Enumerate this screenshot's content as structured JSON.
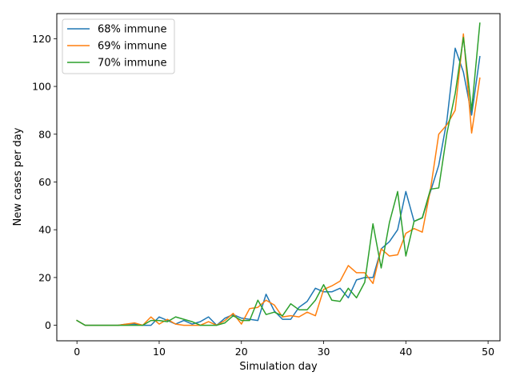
{
  "chart_data": {
    "type": "line",
    "title": "",
    "xlabel": "Simulation day",
    "ylabel": "New cases per day",
    "xlim": [
      -2.45,
      51.45
    ],
    "ylim": [
      -6.5,
      130.5
    ],
    "xticks": [
      0,
      10,
      20,
      30,
      40,
      50
    ],
    "yticks": [
      0,
      20,
      40,
      60,
      80,
      100,
      120
    ],
    "grid": false,
    "legend_position": "top-left",
    "x": [
      0,
      1,
      2,
      3,
      4,
      5,
      6,
      7,
      8,
      9,
      10,
      11,
      12,
      13,
      14,
      15,
      16,
      17,
      18,
      19,
      20,
      21,
      22,
      23,
      24,
      25,
      26,
      27,
      28,
      29,
      30,
      31,
      32,
      33,
      34,
      35,
      36,
      37,
      38,
      39,
      40,
      41,
      42,
      43,
      44,
      45,
      46,
      47,
      48,
      49
    ],
    "series": [
      {
        "name": "68% immune",
        "color": "#1f77b4",
        "values": [
          2,
          0,
          0,
          0,
          0,
          0,
          0.5,
          0.5,
          0,
          0,
          3.5,
          2,
          0.5,
          2,
          0.5,
          1.5,
          3.5,
          0,
          3,
          4.5,
          3,
          2.5,
          2,
          13,
          6,
          2.5,
          2.5,
          7.5,
          10,
          15.5,
          14,
          14,
          15.5,
          11.5,
          19,
          20,
          20,
          32,
          35,
          40,
          56,
          43.5,
          45,
          56,
          67,
          86,
          116,
          106,
          88,
          112.5
        ]
      },
      {
        "name": "69% immune",
        "color": "#ff7f0e",
        "values": [
          2,
          0,
          0,
          0,
          0,
          0,
          0.5,
          1,
          0,
          3.5,
          0.5,
          2.5,
          0.5,
          0,
          0,
          0,
          1.5,
          0,
          2,
          5,
          0.5,
          7,
          7.5,
          10.5,
          8.5,
          3.5,
          4,
          3.5,
          5.5,
          4,
          15,
          16.5,
          18.5,
          25,
          22,
          22,
          17.5,
          32,
          29,
          29.5,
          38.5,
          40.5,
          39,
          57,
          80,
          84,
          90,
          122,
          80.5,
          103.5
        ]
      },
      {
        "name": "70% immune",
        "color": "#2ca02c",
        "values": [
          2,
          0,
          0,
          0,
          0,
          0,
          0,
          0,
          0,
          2,
          2,
          1.5,
          3.5,
          2.5,
          1.5,
          0,
          0,
          0,
          1,
          4,
          2,
          2,
          10.5,
          4.5,
          5.5,
          4,
          9,
          6.5,
          6.5,
          10.5,
          17,
          10.5,
          10,
          15.5,
          11.5,
          18,
          42.5,
          24,
          43,
          56,
          29,
          43.5,
          45,
          57,
          57.5,
          80.5,
          97,
          120.5,
          90,
          126.5
        ]
      }
    ]
  }
}
